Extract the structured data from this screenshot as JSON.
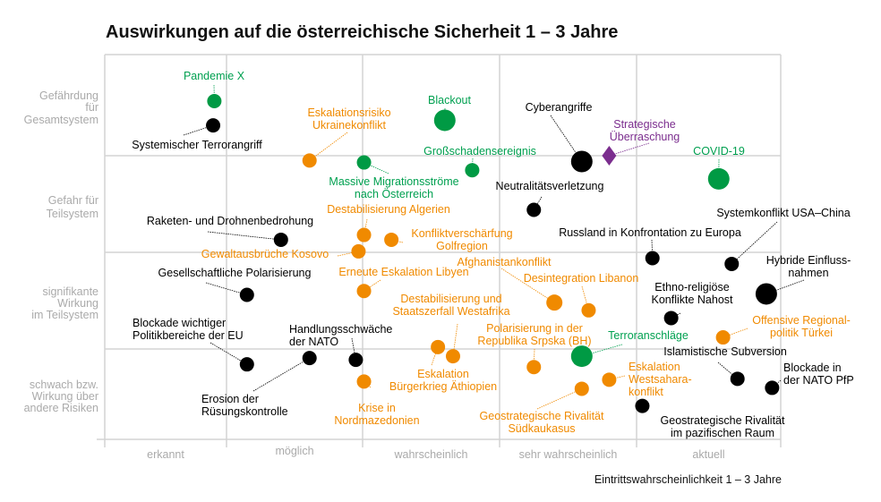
{
  "chart_data": {
    "type": "scatter",
    "title": "Auswirkungen auf die österreichische Sicherheit 1 – 3 Jahre",
    "xlabel": "Eintrittswahrscheinlichkeit 1 – 3 Jahre",
    "x_categories": [
      "erkannt",
      "möglich",
      "wahrscheinlich",
      "sehr wahrscheinlich",
      "aktuell"
    ],
    "y_categories": [
      [
        "schwach bzw.",
        "Wirkung über",
        "andere Risiken"
      ],
      [
        "signifikante",
        "Wirkung",
        "im Teilsystem"
      ],
      [
        "Gefahr für",
        "Teilsystem"
      ],
      [
        "Gefährdung",
        "für",
        "Gesamtsystem"
      ]
    ],
    "xlim": [
      0,
      5
    ],
    "ylim": [
      0,
      4
    ],
    "grid": true,
    "colors": {
      "green": "#009a44",
      "orange": "#f08a00",
      "black": "#000000",
      "purple": "#7b2d8e",
      "green_text": "#00a050",
      "orange_text": "#f08a00",
      "purple_text": "#7b2d8e"
    },
    "points": [
      {
        "label": [
          "Pandemie X"
        ],
        "x": 0.9,
        "y": 3.54,
        "color": "green",
        "size": "small"
      },
      {
        "label": [
          "Systemischer Terrorangriff"
        ],
        "x": 0.89,
        "y": 3.3,
        "color": "black",
        "size": "small"
      },
      {
        "label": [
          "Eskalationsrisiko",
          "Ukrainekonflikt"
        ],
        "x": 1.61,
        "y": 2.95,
        "color": "orange",
        "size": "small"
      },
      {
        "label": [
          "Massive Migrationsströme",
          "nach Österreich"
        ],
        "x": 2.01,
        "y": 2.93,
        "color": "green",
        "size": "small"
      },
      {
        "label": [
          "Blackout"
        ],
        "x": 2.6,
        "y": 3.35,
        "color": "green",
        "size": "large"
      },
      {
        "label": [
          "Großschadensereignis"
        ],
        "x": 2.8,
        "y": 2.85,
        "color": "green",
        "size": "small"
      },
      {
        "label": [
          "Cyberangriffe"
        ],
        "x": 3.6,
        "y": 2.94,
        "color": "black",
        "size": "large"
      },
      {
        "label": [
          "Strategische",
          "Überraschung"
        ],
        "x": 3.8,
        "y": 3.0,
        "color": "purple",
        "size": "diamond"
      },
      {
        "label": [
          "COVID-19"
        ],
        "x": 4.57,
        "y": 2.76,
        "color": "green",
        "size": "large"
      },
      {
        "label": [
          "Neutralitätsverletzung"
        ],
        "x": 3.25,
        "y": 2.44,
        "color": "black",
        "size": "small"
      },
      {
        "label": [
          "Raketen- und Drohnenbedrohung"
        ],
        "x": 1.4,
        "y": 2.13,
        "color": "black",
        "size": "small"
      },
      {
        "label": [
          "Destabilisierung Algerien"
        ],
        "x": 2.01,
        "y": 2.18,
        "color": "orange",
        "size": "small"
      },
      {
        "label": [
          "Konfliktverschärfung",
          "Golfregion"
        ],
        "x": 2.21,
        "y": 2.13,
        "color": "orange",
        "size": "small"
      },
      {
        "label": [
          "Gewaltausbrüche Kosovo"
        ],
        "x": 1.97,
        "y": 2.01,
        "color": "orange",
        "size": "small"
      },
      {
        "label": [
          "Russland in Konfrontation zu Europa"
        ],
        "x": 4.11,
        "y": 1.94,
        "color": "black",
        "size": "small"
      },
      {
        "label": [
          "Systemkonflikt USA–China"
        ],
        "x": 4.66,
        "y": 1.88,
        "color": "black",
        "size": "small"
      },
      {
        "label": [
          "Hybride Einfluss-",
          "nahmen"
        ],
        "x": 4.9,
        "y": 1.57,
        "color": "black",
        "size": "large"
      },
      {
        "label": [
          "Gesellschaftliche Polarisierung"
        ],
        "x": 1.15,
        "y": 1.56,
        "color": "black",
        "size": "small"
      },
      {
        "label": [
          "Erneute Eskalation Libyen"
        ],
        "x": 2.01,
        "y": 1.6,
        "color": "orange",
        "size": "small"
      },
      {
        "label": [
          "Afghanistankonflikt"
        ],
        "x": 3.4,
        "y": 1.48,
        "color": "orange",
        "size": "medium"
      },
      {
        "label": [
          "Desintegration Libanon"
        ],
        "x": 3.65,
        "y": 1.4,
        "color": "orange",
        "size": "small"
      },
      {
        "label": [
          "Ethno-religiöse",
          "Konflikte Nahost"
        ],
        "x": 4.24,
        "y": 1.32,
        "color": "black",
        "size": "small"
      },
      {
        "label": [
          "Offensive Regional-",
          "politik Türkei"
        ],
        "x": 4.6,
        "y": 1.12,
        "color": "orange",
        "size": "small"
      },
      {
        "label": [
          "Destabilisierung und",
          "Staatszerfall Westafrika"
        ],
        "x": 2.66,
        "y": 0.92,
        "color": "orange",
        "size": "small"
      },
      {
        "label": [
          "Polarisierung in der",
          "Republika Srpska (BH)"
        ],
        "x": 3.25,
        "y": 0.8,
        "color": "orange",
        "size": "small"
      },
      {
        "label": [
          "Terroranschläge"
        ],
        "x": 3.6,
        "y": 0.92,
        "color": "green",
        "size": "large"
      },
      {
        "label": [
          "Eskalation",
          "Bürgerkrieg Äthiopien"
        ],
        "x": 2.55,
        "y": 1.02,
        "color": "orange",
        "size": "small"
      },
      {
        "label": [
          "Eskalation",
          "Westsahara-",
          "konflikt"
        ],
        "x": 3.8,
        "y": 0.66,
        "color": "orange",
        "size": "small"
      },
      {
        "label": [
          "Geostrategische Rivalität",
          "Südkaukasus"
        ],
        "x": 3.6,
        "y": 0.56,
        "color": "orange",
        "size": "small"
      },
      {
        "label": [
          "Islamistische Subversion"
        ],
        "x": 4.7,
        "y": 0.67,
        "color": "black",
        "size": "small"
      },
      {
        "label": [
          "Blockade in",
          "der NATO PfP"
        ],
        "x": 4.94,
        "y": 0.57,
        "color": "black",
        "size": "small"
      },
      {
        "label": [
          "Geostrategische Rivalität",
          "im pazifischen Raum"
        ],
        "x": 4.04,
        "y": 0.37,
        "color": "black",
        "size": "small"
      },
      {
        "label": [
          "Blockade wichtiger",
          "Politikbereiche der EU"
        ],
        "x": 1.15,
        "y": 0.83,
        "color": "black",
        "size": "small"
      },
      {
        "label": [
          "Erosion der",
          "Rüsungskontrolle"
        ],
        "x": 1.61,
        "y": 0.9,
        "color": "black",
        "size": "small"
      },
      {
        "label": [
          "Handlungsschwäche",
          "der NATO"
        ],
        "x": 1.95,
        "y": 0.88,
        "color": "black",
        "size": "small"
      },
      {
        "label": [
          "Krise in",
          "Nordmazedonien"
        ],
        "x": 2.01,
        "y": 0.64,
        "color": "orange",
        "size": "small"
      }
    ]
  }
}
